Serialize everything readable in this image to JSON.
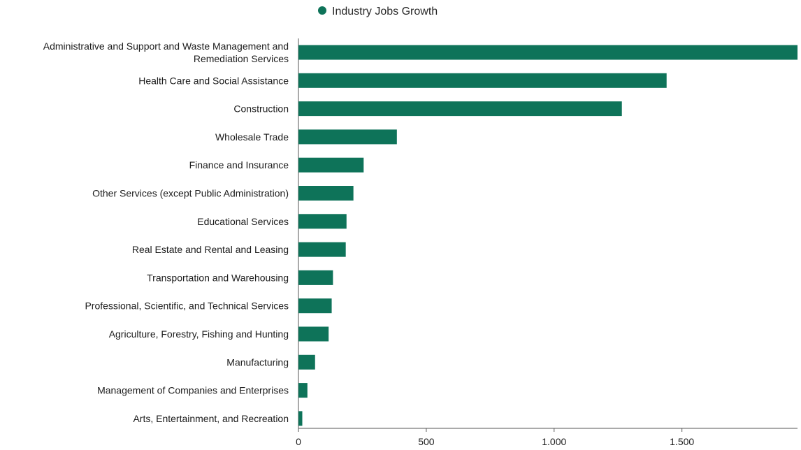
{
  "chart_data": {
    "type": "bar",
    "orientation": "horizontal",
    "legend_position": "top-center",
    "grid": false,
    "categories": [
      "Administrative and Support and Waste Management and Remediation Services",
      "Health Care and Social Assistance",
      "Construction",
      "Wholesale Trade",
      "Finance and Insurance",
      "Other Services (except Public Administration)",
      "Educational Services",
      "Real Estate and Rental and Leasing",
      "Transportation and Warehousing",
      "Professional, Scientific, and Technical Services",
      "Agriculture, Forestry, Fishing and Hunting",
      "Manufacturing",
      "Management of Companies and Enterprises",
      "Arts, Entertainment, and Recreation"
    ],
    "series": [
      {
        "name": "Industry Jobs Growth",
        "color": "#0e7359",
        "values": [
          1952,
          1440,
          1265,
          385,
          255,
          215,
          188,
          185,
          135,
          130,
          118,
          65,
          35,
          15
        ]
      }
    ],
    "xlim": [
      0,
      1952
    ],
    "x_ticks": [
      0,
      500,
      1000,
      1500
    ],
    "x_tick_labels": [
      "0",
      "500",
      "1.000",
      "1.500"
    ],
    "xlabel": "",
    "ylabel": ""
  }
}
